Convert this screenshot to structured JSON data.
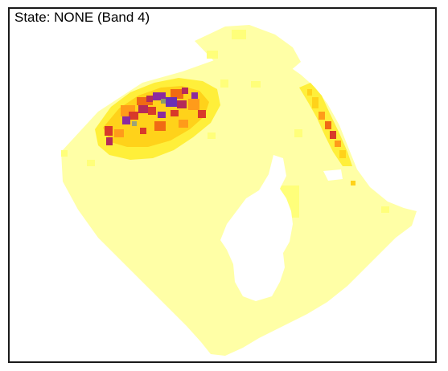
{
  "map": {
    "title": "State: NONE (Band 4)"
  },
  "colors": {
    "background": "#ffffff",
    "frame": "#1a1a1a",
    "pale_yellow": "#ffffa6",
    "light_yellow": "#ffff7a",
    "yellow": "#ffef3a",
    "golden": "#ffd21a",
    "orange": "#ff9b1a",
    "dark_orange": "#f06a14",
    "red": "#d83a2a",
    "magenta": "#b42a5a",
    "purple": "#8a2aa0",
    "violet": "#6a30b4"
  }
}
